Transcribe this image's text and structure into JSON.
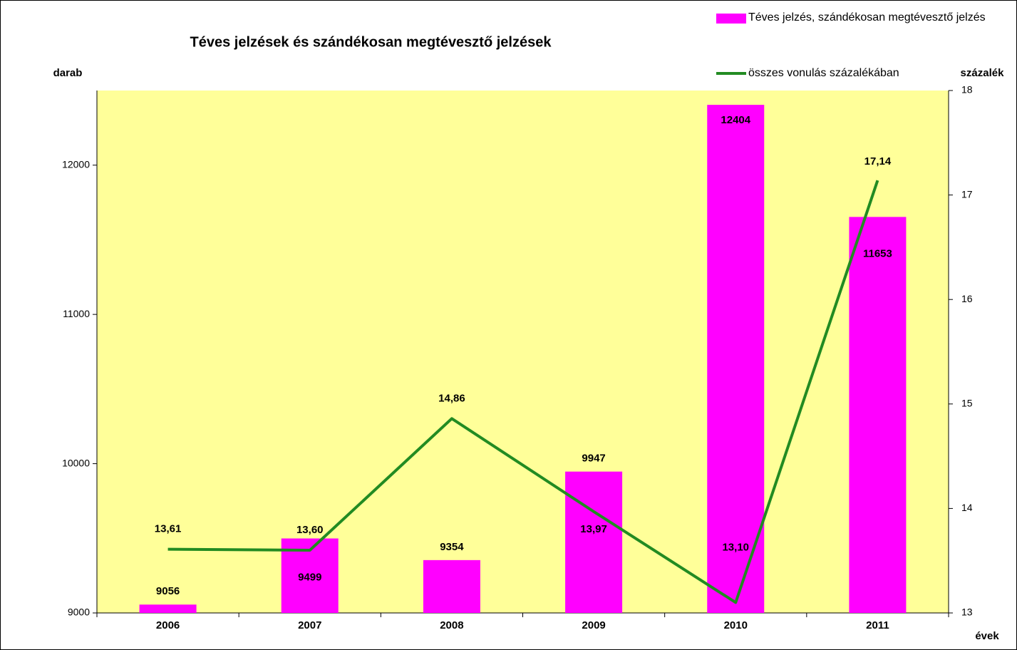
{
  "chart_data": {
    "type": "bar",
    "title": "Téves jelzések és szándékosan megtévesztő jelzések",
    "ylabel": "darab",
    "y2label": "százalék",
    "xlabel": "évek",
    "categories": [
      "2006",
      "2007",
      "2008",
      "2009",
      "2010",
      "2011"
    ],
    "series": [
      {
        "name": "Téves jelzés, szándékosan megtévesztő jelzés",
        "type": "bar",
        "color": "#ff00ff",
        "values": [
          9056,
          9499,
          9354,
          9947,
          12404,
          11653
        ]
      },
      {
        "name": "összes vonulás százalékában",
        "type": "line",
        "axis": "y2",
        "color": "#228b22",
        "values": [
          13.61,
          13.6,
          14.86,
          13.97,
          13.1,
          17.14
        ],
        "value_labels": [
          "13,61",
          "13,60",
          "14,86",
          "13,97",
          "13,10",
          "17,14"
        ]
      }
    ],
    "ylim": [
      9000,
      12500
    ],
    "yticks": [
      9000,
      10000,
      11000,
      12000
    ],
    "y2lim": [
      13,
      18
    ],
    "y2ticks": [
      13,
      14,
      15,
      16,
      17,
      18
    ],
    "legend": "top-right",
    "plot_background": "#ffff99"
  }
}
